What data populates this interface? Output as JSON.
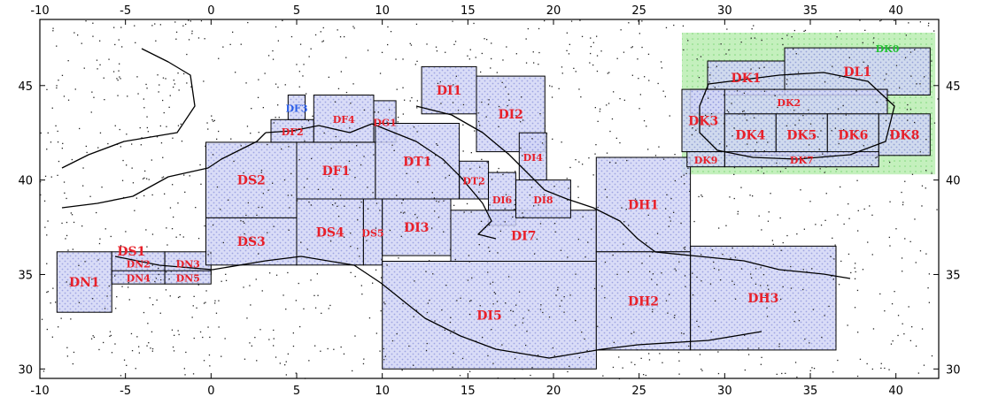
{
  "map": {
    "x_ticks": [
      "-10",
      "-5",
      "0",
      "5",
      "10",
      "15",
      "20",
      "25",
      "30",
      "35",
      "40"
    ],
    "y_ticks_left": [
      "45",
      "40",
      "35",
      "30"
    ],
    "y_ticks_right": [
      "45",
      "40",
      "35",
      "30"
    ],
    "colors": {
      "frame": "#000000",
      "box_fill": "#c4c8f2",
      "black_sea_fill": "#b8ecb4",
      "label_red": "#e8202a",
      "label_blue": "#2b5ee8",
      "label_green": "#22c232"
    },
    "regions": [
      {
        "id": "DN1",
        "label": "DN1",
        "lon": [
          -9,
          -5.8
        ],
        "lat": [
          33,
          36.2
        ],
        "color": "red"
      },
      {
        "id": "DN2",
        "label": "DN2",
        "lon": [
          -5.8,
          -2.7
        ],
        "lat": [
          35,
          36.2
        ],
        "color": "red",
        "small": true
      },
      {
        "id": "DN3",
        "label": "DN3",
        "lon": [
          -2.7,
          0
        ],
        "lat": [
          35,
          36.2
        ],
        "color": "red",
        "small": true
      },
      {
        "id": "DN4",
        "label": "DN4",
        "lon": [
          -5.8,
          -2.7
        ],
        "lat": [
          34.5,
          35.2
        ],
        "color": "red",
        "small": true
      },
      {
        "id": "DN5",
        "label": "DN5",
        "lon": [
          -2.7,
          0
        ],
        "lat": [
          34.5,
          35.2
        ],
        "color": "red",
        "small": true
      },
      {
        "id": "DS1",
        "label": "DS1",
        "lon": [
          -9,
          -0.3
        ],
        "lat": [
          36.2,
          36.3
        ],
        "color": "red"
      },
      {
        "id": "DS2",
        "label": "DS2",
        "lon": [
          -0.3,
          5
        ],
        "lat": [
          38,
          42
        ],
        "color": "red"
      },
      {
        "id": "DS3",
        "label": "DS3",
        "lon": [
          -0.3,
          5
        ],
        "lat": [
          35.5,
          38
        ],
        "color": "red"
      },
      {
        "id": "DS4",
        "label": "DS4",
        "lon": [
          5,
          8.9
        ],
        "lat": [
          35.5,
          39
        ],
        "color": "red"
      },
      {
        "id": "DF1",
        "label": "DF1",
        "lon": [
          5,
          9.6
        ],
        "lat": [
          39,
          42
        ],
        "color": "red"
      },
      {
        "id": "DF2",
        "label": "DF2",
        "lon": [
          3.5,
          6
        ],
        "lat": [
          42,
          43.2
        ],
        "color": "red",
        "small": true
      },
      {
        "id": "DF3",
        "label": "DF3",
        "lon": [
          4.5,
          5.5
        ],
        "lat": [
          43.2,
          44.5
        ],
        "color": "blue",
        "small": true
      },
      {
        "id": "DF4",
        "label": "DF4",
        "lon": [
          6,
          9.5
        ],
        "lat": [
          42,
          44.5
        ],
        "color": "red",
        "small": true
      },
      {
        "id": "DG1",
        "label": "DG1",
        "lon": [
          9.5,
          10.8
        ],
        "lat": [
          42,
          44.2
        ],
        "color": "red",
        "small": true
      },
      {
        "id": "DS5",
        "label": "DS5",
        "lon": [
          8.9,
          10
        ],
        "lat": [
          35.5,
          39
        ],
        "color": "red",
        "small": true
      },
      {
        "id": "DT1",
        "label": "DT1",
        "lon": [
          9.6,
          14.5
        ],
        "lat": [
          39,
          43
        ],
        "color": "red"
      },
      {
        "id": "DT2",
        "label": "DT2",
        "lon": [
          14.5,
          16.2
        ],
        "lat": [
          39,
          41
        ],
        "color": "red",
        "small": true
      },
      {
        "id": "DI1",
        "label": "DI1",
        "lon": [
          12.3,
          15.5
        ],
        "lat": [
          43.5,
          46
        ],
        "color": "red"
      },
      {
        "id": "DI2",
        "label": "DI2",
        "lon": [
          15.5,
          19.5
        ],
        "lat": [
          41.5,
          45.5
        ],
        "color": "red"
      },
      {
        "id": "DI4",
        "label": "DI4",
        "lon": [
          18,
          19.6
        ],
        "lat": [
          40,
          42.5
        ],
        "color": "red",
        "small": true
      },
      {
        "id": "DI3",
        "label": "DI3",
        "lon": [
          10,
          14
        ],
        "lat": [
          36,
          39
        ],
        "color": "red"
      },
      {
        "id": "DI6",
        "label": "DI6",
        "lon": [
          16.2,
          17.8
        ],
        "lat": [
          37.6,
          40.4
        ],
        "color": "red",
        "small": true
      },
      {
        "id": "DI7",
        "label": "DI7",
        "lon": [
          14,
          22.5
        ],
        "lat": [
          35.7,
          38.4
        ],
        "color": "red"
      },
      {
        "id": "DI8",
        "label": "DI8",
        "lon": [
          17.8,
          21
        ],
        "lat": [
          38,
          40
        ],
        "color": "red",
        "small": true
      },
      {
        "id": "DI5",
        "label": "DI5",
        "lon": [
          10,
          22.5
        ],
        "lat": [
          30,
          35.7
        ],
        "color": "red"
      },
      {
        "id": "DH1",
        "label": "DH1",
        "lon": [
          22.5,
          28
        ],
        "lat": [
          36.2,
          41.2
        ],
        "color": "red"
      },
      {
        "id": "DH2",
        "label": "DH2",
        "lon": [
          22.5,
          28
        ],
        "lat": [
          31,
          36.2
        ],
        "color": "red"
      },
      {
        "id": "DH3",
        "label": "DH3",
        "lon": [
          28,
          36.5
        ],
        "lat": [
          31,
          36.5
        ],
        "color": "red"
      },
      {
        "id": "DK1",
        "label": "DK1",
        "lon": [
          29,
          33.5
        ],
        "lat": [
          44.5,
          46.3
        ],
        "color": "red"
      },
      {
        "id": "DL1",
        "label": "DL1",
        "lon": [
          33.5,
          42
        ],
        "lat": [
          44.5,
          47
        ],
        "color": "red"
      },
      {
        "id": "DK2",
        "label": "DK2",
        "lon": [
          28,
          39.5
        ],
        "lat": [
          43.5,
          44.8
        ],
        "color": "red",
        "small": true
      },
      {
        "id": "DK3",
        "label": "DK3",
        "lon": [
          27.5,
          30
        ],
        "lat": [
          41.5,
          44.8
        ],
        "color": "red"
      },
      {
        "id": "DK4",
        "label": "DK4",
        "lon": [
          30,
          33
        ],
        "lat": [
          41.3,
          43.5
        ],
        "color": "red"
      },
      {
        "id": "DK5",
        "label": "DK5",
        "lon": [
          33,
          36
        ],
        "lat": [
          41.3,
          43.5
        ],
        "color": "red"
      },
      {
        "id": "DK6",
        "label": "DK6",
        "lon": [
          36,
          39
        ],
        "lat": [
          41.3,
          43.5
        ],
        "color": "red"
      },
      {
        "id": "DK8",
        "label": "DK8",
        "lon": [
          39,
          42
        ],
        "lat": [
          41.3,
          43.5
        ],
        "color": "red"
      },
      {
        "id": "DK7",
        "label": "DK7",
        "lon": [
          30,
          39
        ],
        "lat": [
          40.7,
          41.5
        ],
        "color": "red",
        "small": true
      },
      {
        "id": "DK9",
        "label": "DK9",
        "lon": [
          27.8,
          30
        ],
        "lat": [
          40.7,
          41.5
        ],
        "color": "red",
        "small": true
      },
      {
        "id": "DK0",
        "label": "DK0",
        "lon": [
          37,
          42
        ],
        "lat": [
          46.5,
          47.5
        ],
        "color": "green",
        "small": true
      }
    ]
  }
}
